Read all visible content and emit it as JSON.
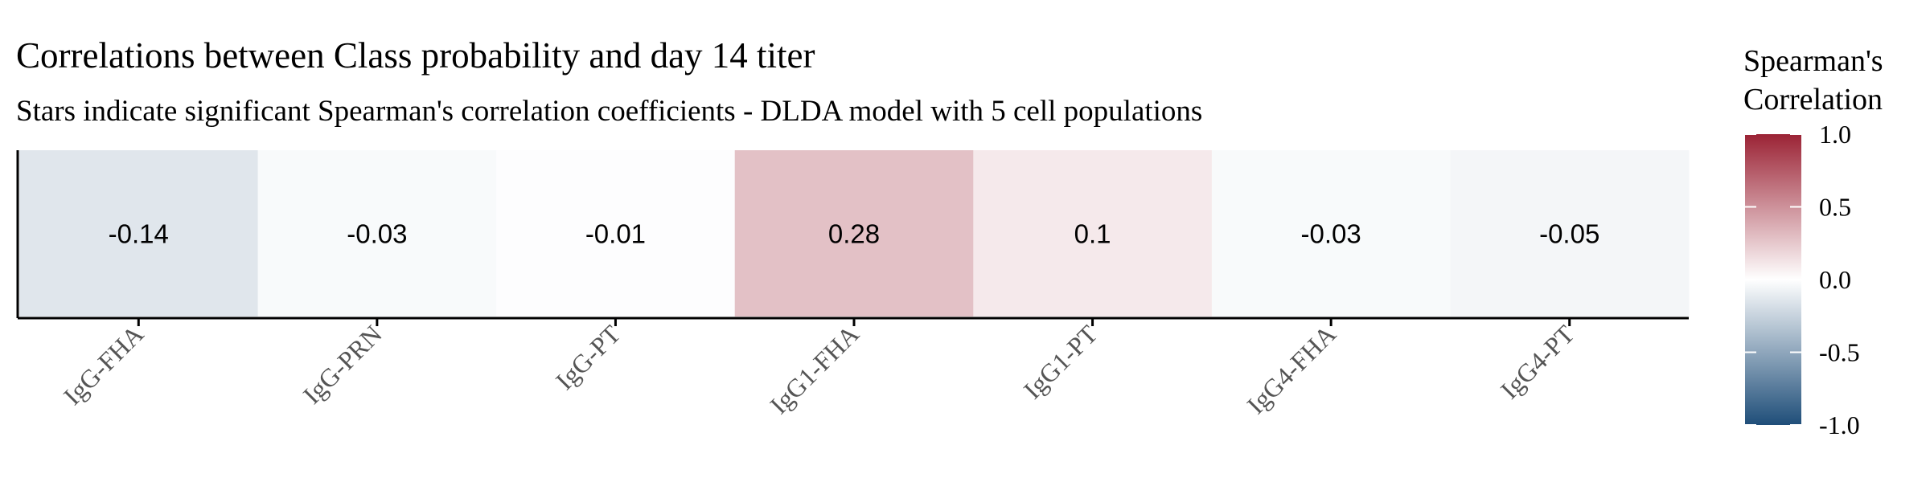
{
  "chart_data": {
    "type": "heatmap",
    "title": "Correlations between Class probability and day 14 titer",
    "subtitle": "Stars indicate significant Spearman's correlation coefficients - DLDA model with 5 cell populations",
    "categories": [
      "IgG-FHA",
      "IgG-PRN",
      "IgG-PT",
      "IgG1-FHA",
      "IgG1-PT",
      "IgG4-FHA",
      "IgG4-PT"
    ],
    "values": [
      -0.14,
      -0.03,
      -0.01,
      0.28,
      0.1,
      -0.03,
      -0.05
    ],
    "value_labels": [
      "-0.14",
      "-0.03",
      "-0.01",
      "0.28",
      "0.1",
      "-0.03",
      "-0.05"
    ],
    "legend": {
      "title_line1": "Spearman's",
      "title_line2": "Correlation",
      "range": [
        -1,
        1
      ],
      "ticks": [
        1.0,
        0.5,
        0.0,
        -0.5,
        -1.0
      ],
      "tick_labels": [
        "1.0",
        "0.5",
        "0.0",
        "-0.5",
        "-1.0"
      ],
      "position": "right"
    },
    "colors": {
      "low": "#1f4e79",
      "mid": "#ffffff",
      "high": "#9b2335"
    },
    "grid": false
  }
}
